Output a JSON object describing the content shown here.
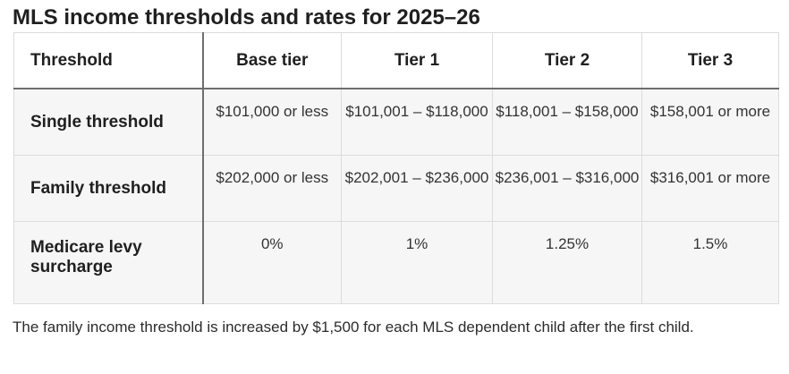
{
  "heading": "MLS income thresholds and rates for 2025–26",
  "table": {
    "headers": [
      "Threshold",
      "Base tier",
      "Tier 1",
      "Tier 2",
      "Tier 3"
    ],
    "rows": [
      {
        "label": "Single threshold",
        "cells": [
          "$101,000 or less",
          "$101,001 – $118,000",
          "$118,001 – $158,000",
          "$158,001 or more"
        ]
      },
      {
        "label": "Family threshold",
        "cells": [
          "$202,000 or less",
          "$202,001 – $236,000",
          "$236,001 – $316,000",
          "$316,001 or more"
        ]
      },
      {
        "label": "Medicare levy surcharge",
        "cells": [
          "0%",
          "1%",
          "1.25%",
          "1.5%"
        ]
      }
    ]
  },
  "note": "The family income threshold is increased by $1,500 for each MLS dependent child after the first child."
}
